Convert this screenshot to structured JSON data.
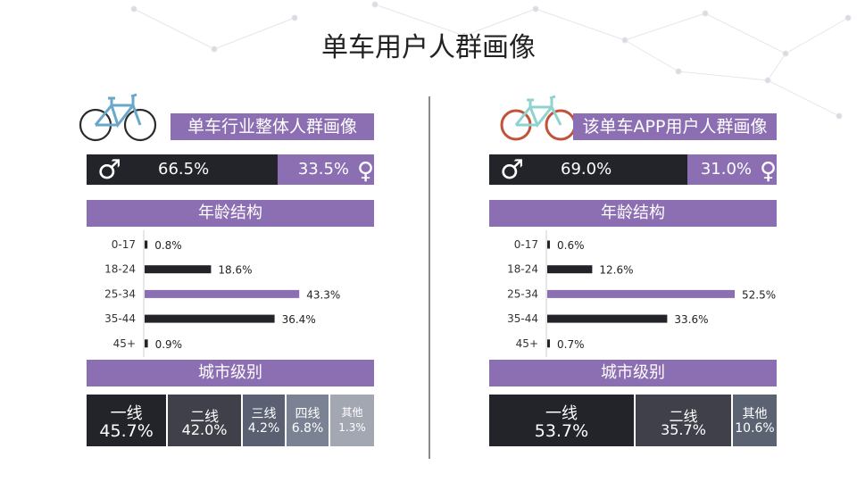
{
  "title": "单车用户人群画像",
  "colors": {
    "purple": "#8c6fb3",
    "dark": "#23242a"
  },
  "panels": [
    {
      "header": "单车行业整体人群画像",
      "gender": {
        "male": "66.5%",
        "female": "33.5%",
        "male_value": 66.5,
        "female_value": 33.5
      },
      "age_header": "年龄结构",
      "city_header": "城市级别"
    },
    {
      "header": "该单车APP用户人群画像",
      "gender": {
        "male": "69.0%",
        "female": "31.0%",
        "male_value": 69.0,
        "female_value": 31.0
      },
      "age_header": "年龄结构",
      "city_header": "城市级别"
    }
  ],
  "chart_data": [
    {
      "type": "bar",
      "title": "年龄结构",
      "categories": [
        "0-17",
        "18-24",
        "25-34",
        "35-44",
        "45+"
      ],
      "values": [
        0.8,
        18.6,
        43.3,
        36.4,
        0.9
      ],
      "labels": [
        "0.8%",
        "18.6%",
        "43.3%",
        "36.4%",
        "0.9%"
      ],
      "highlight_index": 2,
      "xlim": [
        0,
        52.5
      ]
    },
    {
      "type": "bar",
      "title": "年龄结构",
      "categories": [
        "0-17",
        "18-24",
        "25-34",
        "35-44",
        "45+"
      ],
      "values": [
        0.6,
        12.6,
        52.5,
        33.6,
        0.7
      ],
      "labels": [
        "0.6%",
        "12.6%",
        "52.5%",
        "33.6%",
        "0.7%"
      ],
      "highlight_index": 2,
      "xlim": [
        0,
        52.5
      ]
    },
    {
      "type": "bar",
      "title": "城市级别",
      "categories": [
        "一线",
        "二线",
        "三线",
        "四线",
        "其他"
      ],
      "values": [
        45.7,
        42.0,
        4.2,
        6.8,
        1.3
      ],
      "labels": [
        "45.7%",
        "42.0%",
        "4.2%",
        "6.8%",
        "1.3%"
      ],
      "colors": [
        "#23242a",
        "#3f4049",
        "#5a6071",
        "#7b8293",
        "#a3a7b1"
      ]
    },
    {
      "type": "bar",
      "title": "城市级别",
      "categories": [
        "一线",
        "二线",
        "其他"
      ],
      "values": [
        53.7,
        35.7,
        10.6
      ],
      "labels": [
        "53.7%",
        "35.7%",
        "10.6%"
      ],
      "colors": [
        "#23242a",
        "#3f4049",
        "#5b6272"
      ]
    }
  ]
}
